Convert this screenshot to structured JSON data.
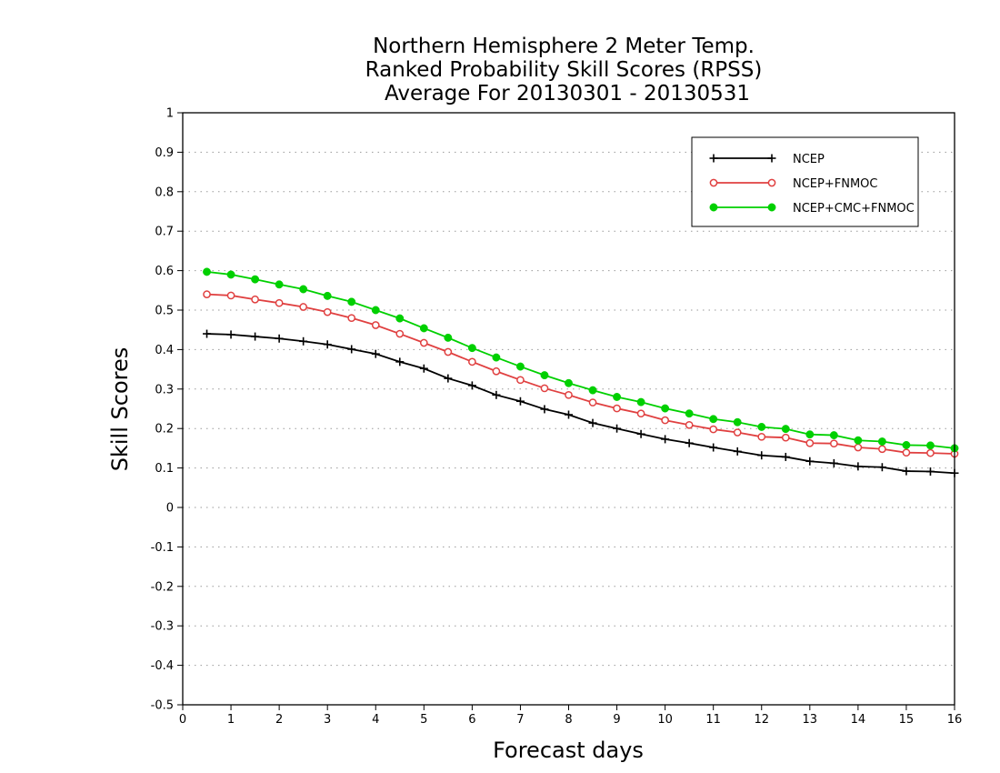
{
  "chart_data": {
    "type": "line",
    "title": [
      "Northern Hemisphere 2 Meter Temp.",
      "Ranked Probability Skill Scores (RPSS)",
      "Average For 20130301 - 20130531"
    ],
    "xlabel": "Forecast days",
    "ylabel": "Skill Scores",
    "xlim": [
      0,
      16
    ],
    "ylim": [
      -0.5,
      1
    ],
    "x_ticks": [
      0,
      1,
      2,
      3,
      4,
      5,
      6,
      7,
      8,
      9,
      10,
      11,
      12,
      13,
      14,
      15,
      16
    ],
    "y_ticks": [
      -0.5,
      -0.4,
      -0.3,
      -0.2,
      -0.1,
      0,
      0.1,
      0.2,
      0.3,
      0.4,
      0.5,
      0.6,
      0.7,
      0.8,
      0.9,
      1
    ],
    "y_tick_labels": [
      "-0.5",
      "-0.4",
      "-0.3",
      "-0.2",
      "-0.1",
      "0",
      "0.1",
      "0.2",
      "0.3",
      "0.4",
      "0.5",
      "0.6",
      "0.7",
      "0.8",
      "0.9",
      "1"
    ],
    "grid": "horizontal dotted",
    "legend_position": "top-right",
    "x": [
      0.5,
      1.0,
      1.5,
      2.0,
      2.5,
      3.0,
      3.5,
      4.0,
      4.5,
      5.0,
      5.5,
      6.0,
      6.5,
      7.0,
      7.5,
      8.0,
      8.5,
      9.0,
      9.5,
      10.0,
      10.5,
      11.0,
      11.5,
      12.0,
      12.5,
      13.0,
      13.5,
      14.0,
      14.5,
      15.0,
      15.5,
      16.0
    ],
    "series": [
      {
        "name": "NCEP",
        "color": "#000000",
        "marker": "plus",
        "values": [
          0.44,
          0.438,
          0.433,
          0.428,
          0.421,
          0.413,
          0.401,
          0.389,
          0.369,
          0.352,
          0.327,
          0.309,
          0.285,
          0.269,
          0.249,
          0.235,
          0.214,
          0.2,
          0.186,
          0.173,
          0.163,
          0.152,
          0.142,
          0.132,
          0.128,
          0.117,
          0.112,
          0.104,
          0.102,
          0.092,
          0.091,
          0.087
        ]
      },
      {
        "name": "NCEP+FNMOC",
        "color": "#e04040",
        "marker": "open-circle",
        "values": [
          0.54,
          0.537,
          0.527,
          0.518,
          0.508,
          0.495,
          0.48,
          0.462,
          0.44,
          0.417,
          0.394,
          0.369,
          0.345,
          0.323,
          0.302,
          0.285,
          0.266,
          0.251,
          0.238,
          0.221,
          0.209,
          0.198,
          0.19,
          0.179,
          0.177,
          0.163,
          0.162,
          0.152,
          0.148,
          0.139,
          0.138,
          0.136
        ]
      },
      {
        "name": "NCEP+CMC+FNMOC",
        "color": "#00d000",
        "marker": "filled-circle",
        "values": [
          0.597,
          0.59,
          0.578,
          0.565,
          0.553,
          0.536,
          0.521,
          0.5,
          0.479,
          0.454,
          0.43,
          0.404,
          0.38,
          0.357,
          0.335,
          0.315,
          0.297,
          0.28,
          0.267,
          0.251,
          0.238,
          0.224,
          0.216,
          0.204,
          0.199,
          0.185,
          0.183,
          0.17,
          0.167,
          0.158,
          0.157,
          0.15
        ]
      }
    ]
  }
}
